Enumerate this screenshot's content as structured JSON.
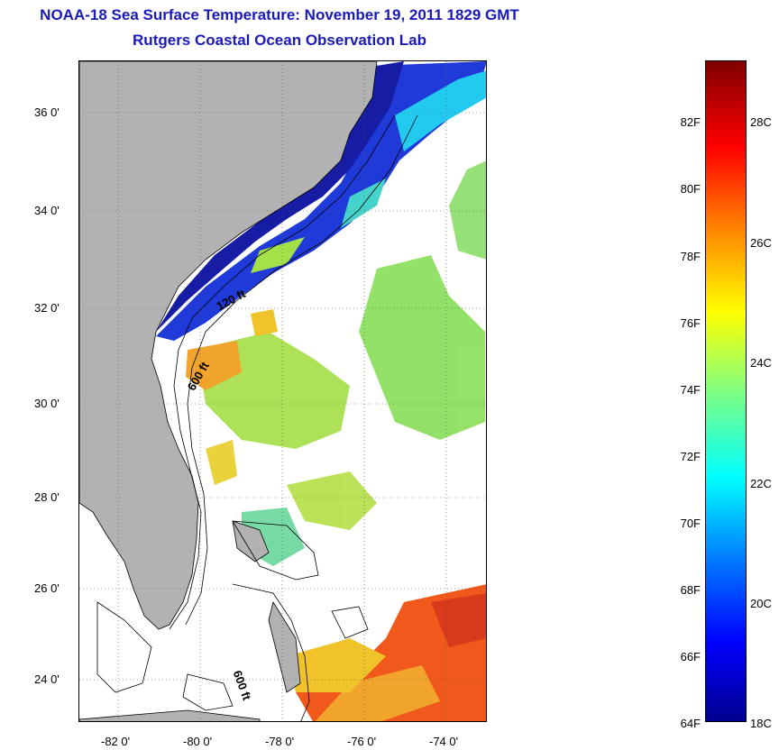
{
  "title": {
    "line1": "NOAA-18 Sea Surface Temperature:  November 19, 2011 1829 GMT",
    "line2": "Rutgers Coastal Ocean Observation Lab"
  },
  "map": {
    "lat_ticks": [
      "36 0'",
      "34 0'",
      "32 0'",
      "30 0'",
      "28 0'",
      "26 0'",
      "24 0'"
    ],
    "lon_ticks": [
      "-82 0'",
      "-80 0'",
      "-78 0'",
      "-76 0'",
      "-74 0'"
    ],
    "lon_range": [
      -83.0,
      -73.0
    ],
    "lat_range": [
      23.0,
      37.0
    ],
    "contours": [
      "120 ft",
      "600 ft",
      "600 ft"
    ],
    "land_color": "#b2b2b2"
  },
  "colorbar": {
    "fahrenheit": [
      "82F",
      "80F",
      "78F",
      "76F",
      "74F",
      "72F",
      "70F",
      "68F",
      "66F",
      "64F"
    ],
    "celsius": [
      "28C",
      "26C",
      "24C",
      "22C",
      "20C",
      "18C"
    ],
    "range_c": [
      18,
      29
    ]
  }
}
